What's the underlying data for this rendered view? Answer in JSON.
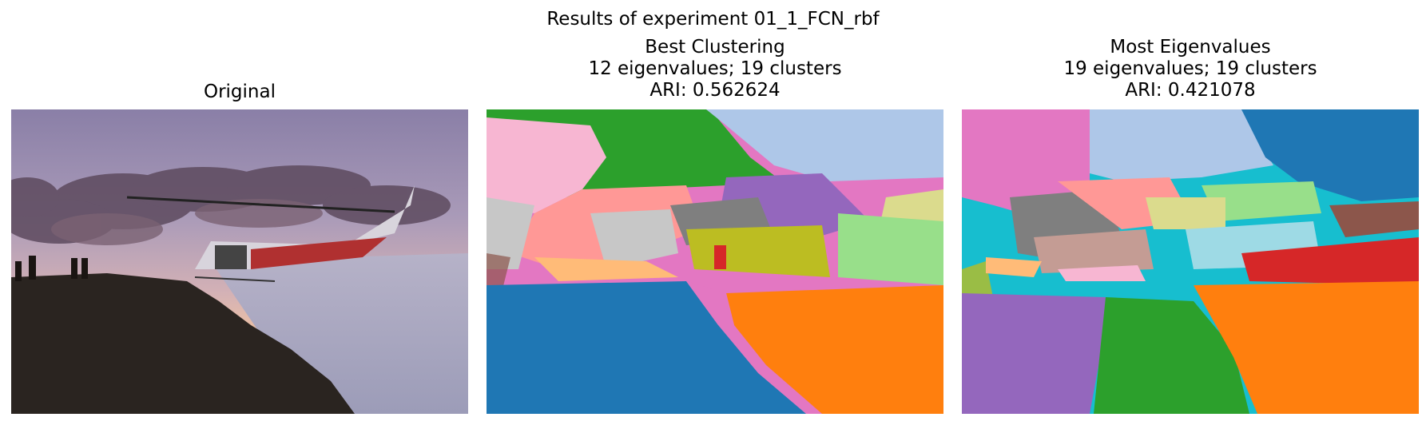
{
  "figure": {
    "suptitle": "Results of experiment 01_1_FCN_rbf"
  },
  "panels": [
    {
      "title_lines": [
        "Original"
      ]
    },
    {
      "title_lines": [
        "Best Clustering",
        "12 eigenvalues; 19 clusters",
        "ARI: 0.562624"
      ]
    },
    {
      "title_lines": [
        "Most Eigenvalues",
        "19 eigenvalues; 19 clusters",
        "ARI: 0.421078"
      ]
    }
  ],
  "colors": {
    "tab_blue": "#1f77b4",
    "tab_orange": "#ff7f0e",
    "tab_green": "#2ca02c",
    "tab_red": "#d62728",
    "tab_purple": "#9467bd",
    "tab_brown": "#8c564b",
    "tab_pink": "#e377c2",
    "tab_gray": "#7f7f7f",
    "tab_olive": "#bcbd22",
    "tab_cyan": "#17becf",
    "light_blue": "#aec7e8",
    "light_pink": "#f7b6d2",
    "salmon": "#ff9896",
    "light_green": "#98df8a",
    "light_orange": "#ffbb78",
    "light_gray": "#c7c7c7",
    "light_olive": "#dbdb8d",
    "light_cyan": "#9edae5"
  }
}
